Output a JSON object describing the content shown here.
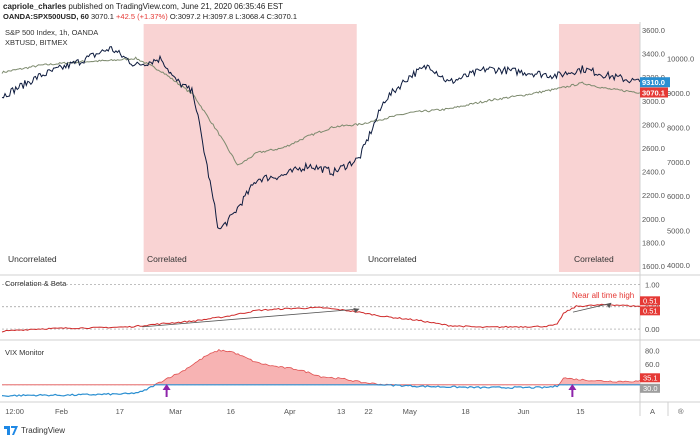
{
  "header": {
    "author": "capriole_charles",
    "published": "published on TradingView.com, June 21, 2020 06:35:46 EST",
    "symbol": "OANDA:SPX500USD, 60",
    "last": "3070.1",
    "change": "+42.5 (+1.37%)",
    "ohlc": "O:3097.2 H:3097.8 L:3068.4 C:3070.1"
  },
  "colors": {
    "spx_line": "#7d8a6e",
    "btc_line": "#0d1b3e",
    "correlation": "#cf2a2a",
    "vix_area": "#f7b3b3",
    "vix_line": "#e05050",
    "vix_base": "#2a8fd1",
    "shade": "#f9d3d3",
    "arrow": "#8e24aa"
  },
  "brand": {
    "name": "TradingView",
    "logo_icon": "tradingview-logo-icon"
  },
  "chart_data": [
    {
      "type": "line",
      "title": "S&P 500 Index, 1h, OANDA",
      "series": [
        {
          "name": "S&P 500 Index",
          "axis": "left",
          "x": [
            0,
            0.06,
            0.12,
            0.17,
            0.21,
            0.25,
            0.3,
            0.34,
            0.37,
            0.4,
            0.44,
            0.48,
            0.52,
            0.56,
            0.6,
            0.64,
            0.7,
            0.76,
            0.82,
            0.87,
            0.91,
            0.95,
            1.0
          ],
          "values": [
            3240,
            3300,
            3330,
            3340,
            3360,
            3250,
            3050,
            2720,
            2450,
            2560,
            2600,
            2700,
            2780,
            2800,
            2850,
            2900,
            2930,
            3000,
            3050,
            3100,
            3150,
            3100,
            3070
          ]
        },
        {
          "name": "XBTUSD, BITMEX",
          "axis": "right",
          "x": [
            0,
            0.06,
            0.12,
            0.17,
            0.21,
            0.25,
            0.27,
            0.3,
            0.34,
            0.36,
            0.4,
            0.44,
            0.48,
            0.52,
            0.56,
            0.6,
            0.64,
            0.67,
            0.7,
            0.76,
            0.82,
            0.87,
            0.91,
            0.95,
            1.0
          ],
          "values": [
            8900,
            9500,
            9900,
            10300,
            9800,
            10000,
            9400,
            9000,
            5000,
            5400,
            6500,
            6600,
            6900,
            6700,
            7100,
            8800,
            9500,
            9800,
            9300,
            9700,
            9600,
            9500,
            9700,
            9500,
            9310
          ]
        }
      ],
      "left_axis_ticks": [
        "3600.0",
        "3400.0",
        "3200.0",
        "3000.0",
        "2800.0",
        "2600.0",
        "2400.0",
        "2200.0",
        "2000.0",
        "1800.0",
        "1600.0"
      ],
      "right_axis_ticks": [
        "10000.0",
        "9000.0",
        "8000.0",
        "7000.0",
        "6000.0",
        "5000.0",
        "4000.0"
      ],
      "ylim_left": [
        1550,
        3650
      ],
      "ylim_right": [
        3800,
        11000
      ],
      "price_labels": {
        "btc": "9310.0",
        "spx": "3070.1"
      },
      "regions": [
        {
          "label": "Uncorrelated",
          "start": 0.0,
          "end": 0.222,
          "shaded": false
        },
        {
          "label": "Correlated",
          "start": 0.222,
          "end": 0.556,
          "shaded": true
        },
        {
          "label": "Uncorrelated",
          "start": 0.556,
          "end": 0.873,
          "shaded": false
        },
        {
          "label": "Correlated",
          "start": 0.873,
          "end": 1.0,
          "shaded": true
        }
      ]
    },
    {
      "type": "line",
      "title": "Correlation & Beta",
      "x": [
        0,
        0.05,
        0.1,
        0.15,
        0.2,
        0.25,
        0.3,
        0.35,
        0.4,
        0.45,
        0.5,
        0.55,
        0.6,
        0.65,
        0.7,
        0.75,
        0.8,
        0.85,
        0.87,
        0.88,
        0.9,
        0.95,
        1.0
      ],
      "values": [
        -0.05,
        0.0,
        0.02,
        0.03,
        0.05,
        0.12,
        0.18,
        0.28,
        0.42,
        0.46,
        0.48,
        0.4,
        0.28,
        0.2,
        0.08,
        0.04,
        0.05,
        0.06,
        0.1,
        0.35,
        0.51,
        0.55,
        0.51
      ],
      "ylim": [
        -0.2,
        1.1
      ],
      "ticks": [
        "1.00",
        "0.50",
        "0.00"
      ],
      "last_value_labels": [
        "0.51",
        "0.51"
      ],
      "annotation": "Near all time high"
    },
    {
      "type": "area",
      "title": "VIX Monitor",
      "x": [
        0,
        0.05,
        0.1,
        0.15,
        0.2,
        0.22,
        0.24,
        0.26,
        0.28,
        0.3,
        0.32,
        0.34,
        0.36,
        0.38,
        0.4,
        0.42,
        0.44,
        0.46,
        0.48,
        0.5,
        0.52,
        0.54,
        0.56,
        0.6,
        0.65,
        0.7,
        0.75,
        0.8,
        0.85,
        0.87,
        0.88,
        0.9,
        0.93,
        0.96,
        1.0
      ],
      "values": [
        14,
        15,
        15,
        16,
        17,
        20,
        30,
        40,
        48,
        60,
        72,
        80,
        78,
        70,
        62,
        58,
        55,
        53,
        48,
        42,
        40,
        38,
        34,
        30,
        28,
        27,
        26,
        26,
        26,
        28,
        40,
        38,
        36,
        35,
        35.1
      ],
      "baseline": 30.0,
      "ylim": [
        8,
        92
      ],
      "ticks": [
        "80.0",
        "60.0",
        "40.0"
      ],
      "last_value_labels": [
        "35.1",
        "30.0"
      ]
    }
  ],
  "x_axis_ticks": [
    "12:00",
    "Feb",
    "17",
    "Mar",
    "16",
    "Apr",
    "13",
    "22",
    "May",
    "18",
    "Jun",
    "15"
  ],
  "axis_buttons": [
    "A",
    "®"
  ]
}
